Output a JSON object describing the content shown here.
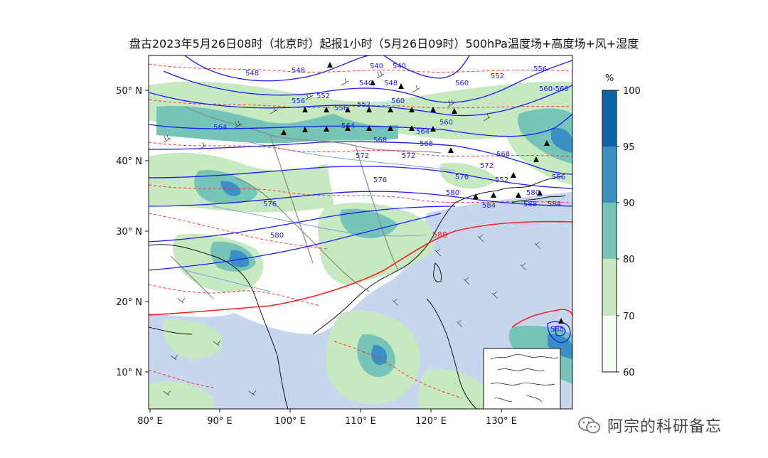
{
  "title": "盘古2023年5月26日08时（北京时）起报1小时（5月26日09时）500hPa温度场+高度场+风+湿度",
  "axes": {
    "lon_ticks": [
      "80° E",
      "90° E",
      "100° E",
      "110° E",
      "120° E",
      "130° E"
    ],
    "lat_ticks": [
      "50° N",
      "40° N",
      "30° N",
      "20° N",
      "10° N"
    ],
    "lon_values": [
      80,
      90,
      100,
      110,
      120,
      130
    ],
    "lat_values": [
      50,
      40,
      30,
      20,
      10
    ],
    "lon_range": [
      80,
      140
    ],
    "lat_range": [
      5,
      55
    ]
  },
  "colorbar": {
    "unit": "%",
    "ticks": [
      "100",
      "95",
      "90",
      "80",
      "70",
      "60"
    ],
    "levels": [
      60,
      70,
      80,
      90,
      95,
      100
    ],
    "colors": [
      "#f7fcf5",
      "#c7e9c0",
      "#74c4b8",
      "#3a8fc4",
      "#0c63a8"
    ]
  },
  "height_contours": {
    "color": "#1a1aff",
    "labels": [
      "540",
      "540",
      "540",
      "548",
      "548",
      "548",
      "552",
      "552",
      "552",
      "556",
      "556",
      "556",
      "560",
      "560",
      "560",
      "564",
      "564",
      "564",
      "568",
      "568",
      "568",
      "572",
      "572",
      "572",
      "576",
      "576",
      "576",
      "580",
      "580",
      "580",
      "584",
      "584",
      "588",
      "560-560",
      "552",
      "556",
      "588"
    ]
  },
  "temperature_contours": {
    "color": "#ff3333"
  },
  "watermark": {
    "text": "阿宗的科研备忘",
    "icon": "wechat-icon"
  }
}
